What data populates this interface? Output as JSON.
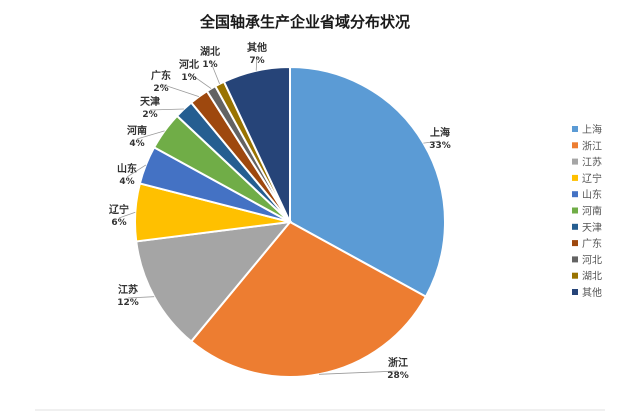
{
  "chart_data": {
    "type": "pie",
    "title": "全国轴承生产企业省域分布状况",
    "slices": [
      {
        "label": "上海",
        "value": 33,
        "pct_label": "33%",
        "color": "#5B9BD5"
      },
      {
        "label": "浙江",
        "value": 28,
        "pct_label": "28%",
        "color": "#ED7D31"
      },
      {
        "label": "江苏",
        "value": 12,
        "pct_label": "12%",
        "color": "#A5A5A5"
      },
      {
        "label": "辽宁",
        "value": 6,
        "pct_label": "6%",
        "color": "#FFC000"
      },
      {
        "label": "山东",
        "value": 4,
        "pct_label": "4%",
        "color": "#4472C4"
      },
      {
        "label": "河南",
        "value": 4,
        "pct_label": "4%",
        "color": "#70AD47"
      },
      {
        "label": "天津",
        "value": 2,
        "pct_label": "2%",
        "color": "#255E91"
      },
      {
        "label": "广东",
        "value": 2,
        "pct_label": "2%",
        "color": "#9E480E"
      },
      {
        "label": "河北",
        "value": 1,
        "pct_label": "1%",
        "color": "#636363"
      },
      {
        "label": "湖北",
        "value": 1,
        "pct_label": "1%",
        "color": "#997300"
      },
      {
        "label": "其他",
        "value": 7,
        "pct_label": "7%",
        "color": "#264478"
      }
    ],
    "legend_placement": "right"
  }
}
